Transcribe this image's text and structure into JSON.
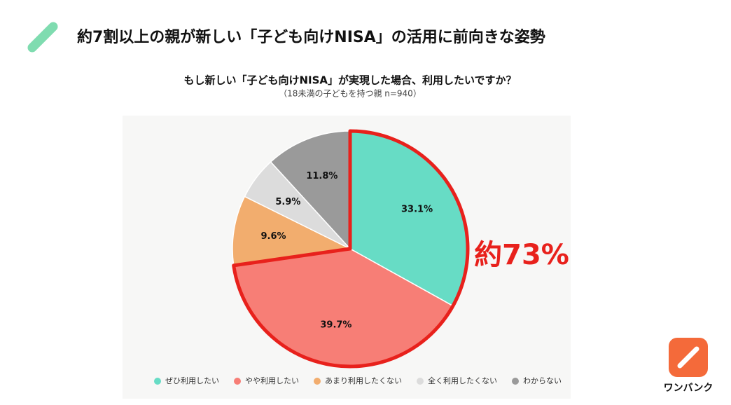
{
  "header": {
    "title": "約7割以上の親が新しい「子ども向けNISA」の活用に前向きな姿勢"
  },
  "chart_data": {
    "type": "pie",
    "title": "もし新しい「子ども向けNISA」が実現した場合、利用したいですか？",
    "subtitle": "（18未満の子どもを持つ親 n=940）",
    "categories": [
      "ぜひ利用したい",
      "やや利用したい",
      "あまり利用したくない",
      "全く利用したくない",
      "わからない"
    ],
    "values": [
      33.1,
      39.7,
      9.6,
      5.9,
      11.8
    ],
    "value_labels": [
      "33.1%",
      "39.7%",
      "9.6%",
      "5.9%",
      "11.8%"
    ],
    "colors": [
      "#67dcc5",
      "#f77e76",
      "#f2ad6e",
      "#dcdcdc",
      "#9a9a9a"
    ],
    "annotation": "約73%",
    "highlight_color": "#e8211c",
    "legend": "bottom"
  },
  "brand": {
    "name": "ワンバンク"
  }
}
